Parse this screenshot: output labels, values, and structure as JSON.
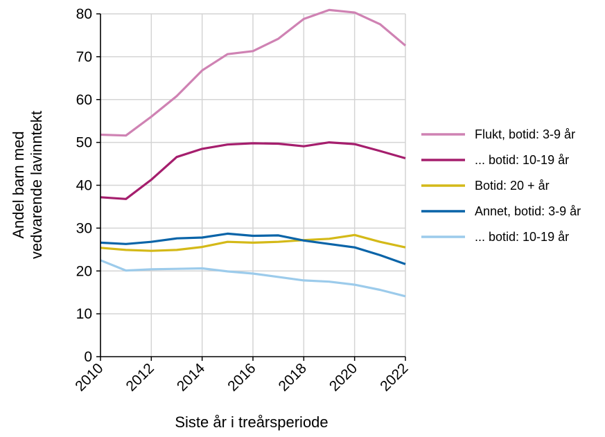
{
  "chart_data": {
    "type": "line",
    "title": "",
    "xlabel": "Siste år i treårsperiode",
    "ylabel_lines": [
      "Andel barn med",
      "vedvarende lavinntekt"
    ],
    "xlim": [
      2010,
      2022
    ],
    "ylim": [
      0,
      80
    ],
    "x_ticks": [
      2010,
      2012,
      2014,
      2016,
      2018,
      2020,
      2022
    ],
    "y_ticks": [
      0,
      10,
      20,
      30,
      40,
      50,
      60,
      70,
      80
    ],
    "grid": true,
    "legend_position": "right",
    "x": [
      2010,
      2011,
      2012,
      2013,
      2014,
      2015,
      2016,
      2017,
      2018,
      2019,
      2020,
      2021,
      2022
    ],
    "series": [
      {
        "name": "Flukt, botid: 3-9 år",
        "color": "#cf82b3",
        "values": [
          51.8,
          51.6,
          56.0,
          60.8,
          66.8,
          70.6,
          71.3,
          74.2,
          78.8,
          80.9,
          80.3,
          77.6,
          72.6
        ]
      },
      {
        "name": "... botid: 10-19 år",
        "color": "#a51e6d",
        "values": [
          37.2,
          36.8,
          41.3,
          46.6,
          48.5,
          49.5,
          49.8,
          49.7,
          49.1,
          50.0,
          49.6,
          48.0,
          46.3
        ]
      },
      {
        "name": "Botid: 20 + år",
        "color": "#d4b918",
        "values": [
          25.4,
          24.9,
          24.7,
          24.9,
          25.6,
          26.8,
          26.6,
          26.8,
          27.2,
          27.5,
          28.4,
          26.8,
          25.5
        ]
      },
      {
        "name": "Annet, botid: 3-9 år",
        "color": "#0a64a8",
        "values": [
          26.6,
          26.3,
          26.8,
          27.6,
          27.8,
          28.7,
          28.2,
          28.3,
          27.1,
          26.3,
          25.5,
          23.7,
          21.6
        ]
      },
      {
        "name": "... botid: 10-19 år",
        "color": "#9ccbeb",
        "values": [
          22.5,
          20.1,
          20.4,
          20.5,
          20.6,
          19.9,
          19.4,
          18.6,
          17.8,
          17.5,
          16.8,
          15.6,
          14.1
        ]
      }
    ]
  }
}
